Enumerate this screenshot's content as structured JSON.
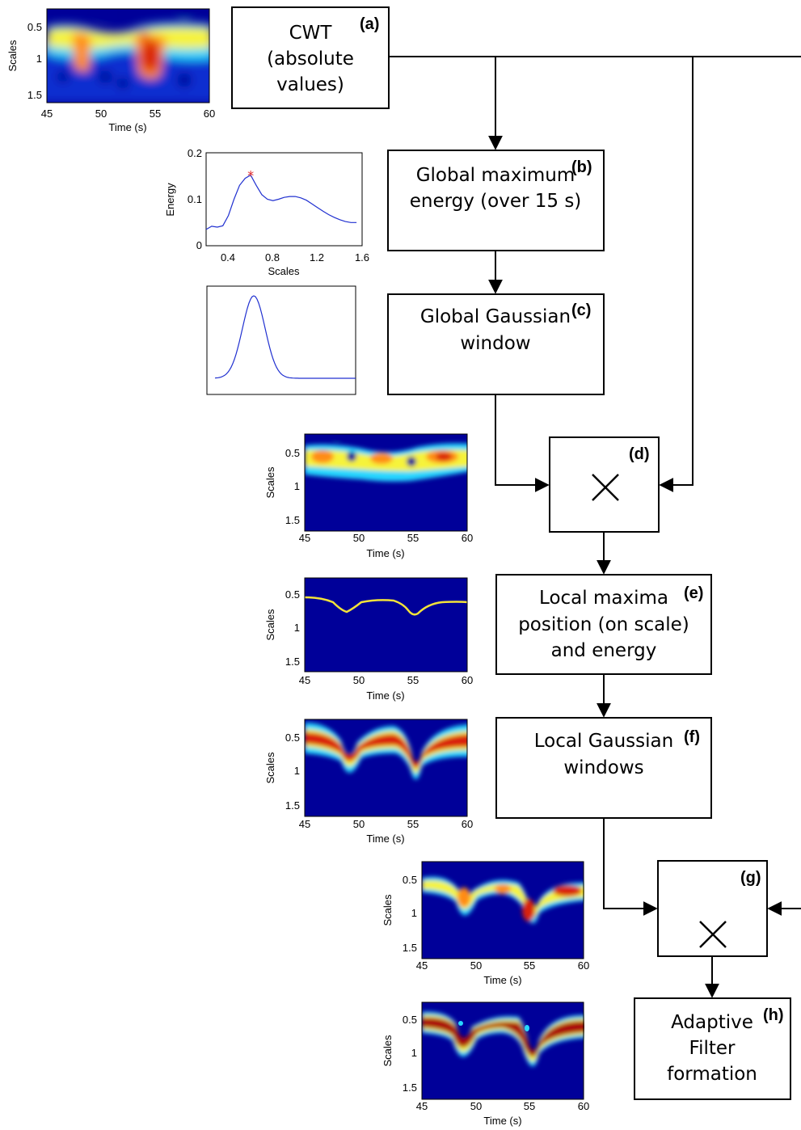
{
  "blocks": [
    {
      "id": "a",
      "tag": "(a)",
      "lines": [
        "CWT",
        "(absolute",
        "values)"
      ]
    },
    {
      "id": "b",
      "tag": "(b)",
      "lines": [
        "Global maximum",
        "energy (over 15 s)"
      ]
    },
    {
      "id": "c",
      "tag": "(c)",
      "lines": [
        "Global Gaussian",
        "window"
      ]
    },
    {
      "id": "d",
      "tag": "(d)",
      "symbol": "×"
    },
    {
      "id": "e",
      "tag": "(e)",
      "lines": [
        "Local maxima",
        "position (on scale)",
        "and energy"
      ]
    },
    {
      "id": "f",
      "tag": "(f)",
      "lines": [
        "Local Gaussian",
        "windows"
      ]
    },
    {
      "id": "g",
      "tag": "(g)",
      "symbol": "×"
    },
    {
      "id": "h",
      "tag": "(h)",
      "lines": [
        "Adaptive",
        "Filter",
        "formation"
      ]
    }
  ],
  "scalogram_axes": {
    "xlabel": "Time (s)",
    "ylabel": "Scales",
    "xticks": [
      "45",
      "50",
      "55",
      "60"
    ],
    "yticks": [
      "0.5",
      "1",
      "1.5"
    ]
  },
  "energy_plot": {
    "xlabel": "Scales",
    "ylabel": "Energy",
    "xticks": [
      "0.4",
      "0.8",
      "1.2",
      "1.6"
    ],
    "yticks": [
      "0",
      "0.1",
      "0.2"
    ],
    "marker": "*"
  },
  "chart_data": [
    {
      "type": "line",
      "xlabel": "Scales",
      "ylabel": "Energy",
      "xlim": [
        0.2,
        1.6
      ],
      "ylim": [
        0,
        0.2
      ],
      "series": [
        {
          "x": [
            0.2,
            0.25,
            0.3,
            0.35,
            0.4,
            0.45,
            0.5,
            0.55,
            0.6,
            0.65,
            0.7,
            0.75,
            0.8,
            0.85,
            0.9,
            0.95,
            1.0,
            1.05,
            1.1,
            1.15,
            1.2,
            1.25,
            1.3,
            1.35,
            1.4,
            1.45,
            1.5,
            1.55
          ],
          "values": [
            0.035,
            0.042,
            0.04,
            0.043,
            0.065,
            0.1,
            0.13,
            0.145,
            0.152,
            0.13,
            0.11,
            0.1,
            0.097,
            0.1,
            0.104,
            0.106,
            0.106,
            0.103,
            0.098,
            0.09,
            0.082,
            0.074,
            0.067,
            0.061,
            0.056,
            0.052,
            0.05,
            0.05
          ]
        }
      ],
      "markers": [
        {
          "x": 0.6,
          "y": 0.152,
          "symbol": "*",
          "color": "#e02020"
        }
      ]
    }
  ],
  "colors": {
    "curve": "#2030d0",
    "marker": "#e02020",
    "ridge": "#f2e23a",
    "jet_bg": "#000099"
  }
}
